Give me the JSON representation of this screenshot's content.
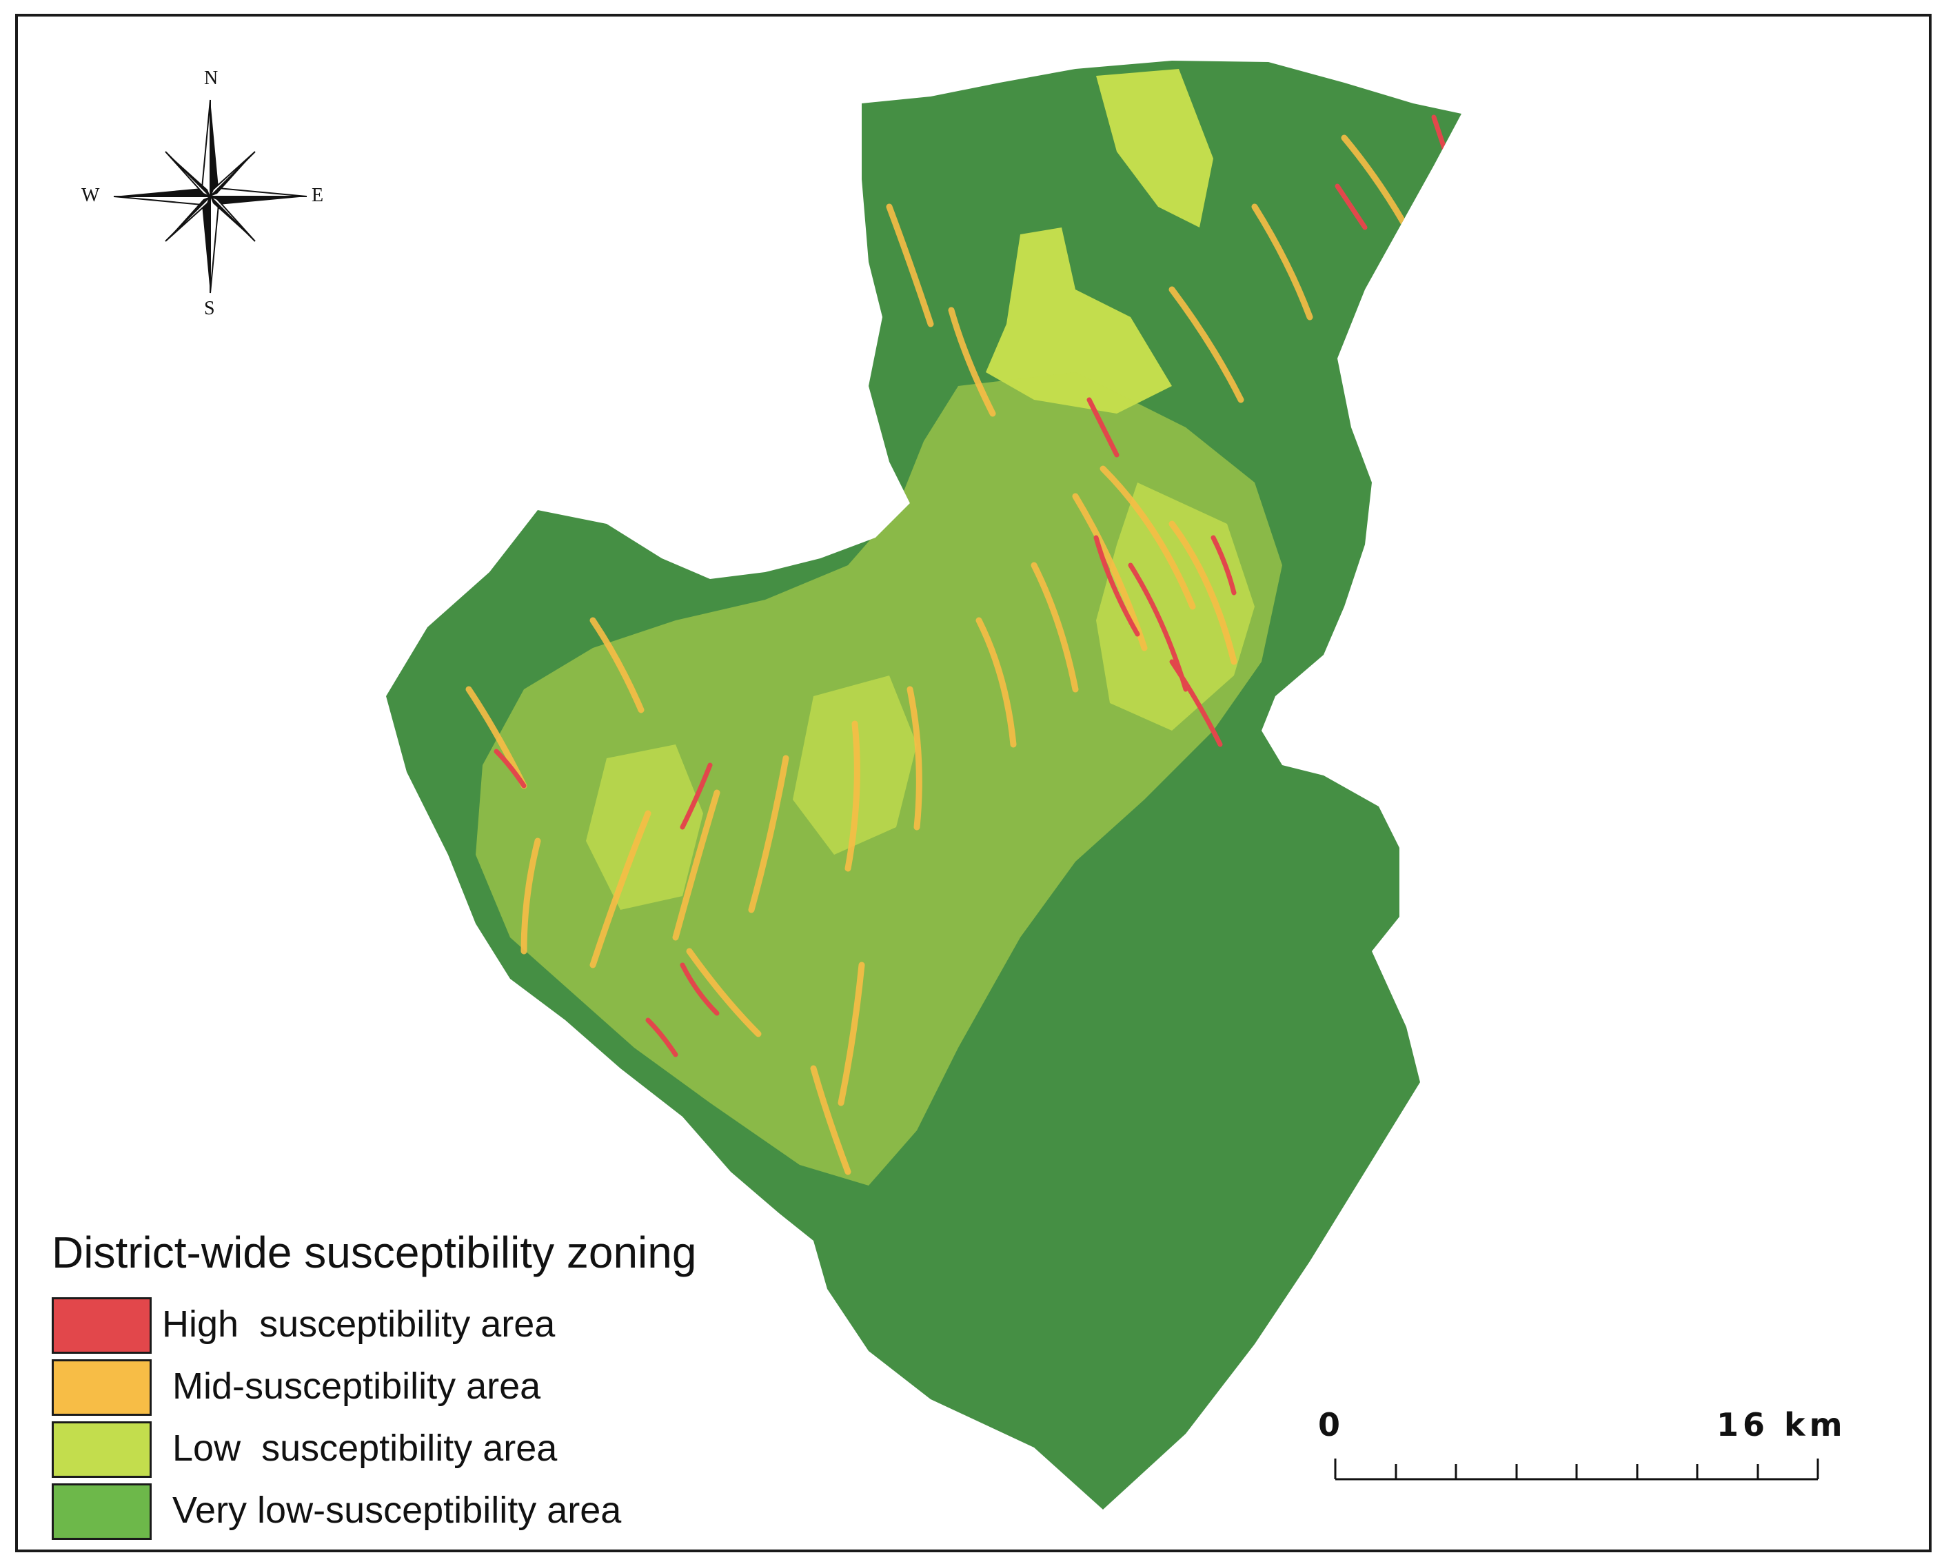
{
  "compass": {
    "north": "N",
    "south": "S",
    "east": "E",
    "west": "W"
  },
  "legend": {
    "title": "District-wide susceptibility zoning",
    "items": [
      {
        "label": "High  susceptibility area",
        "color": "#e2474b"
      },
      {
        "label": " Mid-susceptibility area",
        "color": "#f7bd46"
      },
      {
        "label": " Low  susceptibility area",
        "color": "#c3dd4d"
      },
      {
        "label": " Very low-susceptibility area",
        "color": "#6db84a"
      }
    ]
  },
  "scale_bar": {
    "start_label": "0",
    "end_label": "16 km"
  },
  "colors": {
    "very_low_fill_on_map": "#458f44",
    "low": "#c3dd4d",
    "mid": "#f7bd46",
    "high": "#e2474b",
    "frame": "#1a1a1a"
  }
}
